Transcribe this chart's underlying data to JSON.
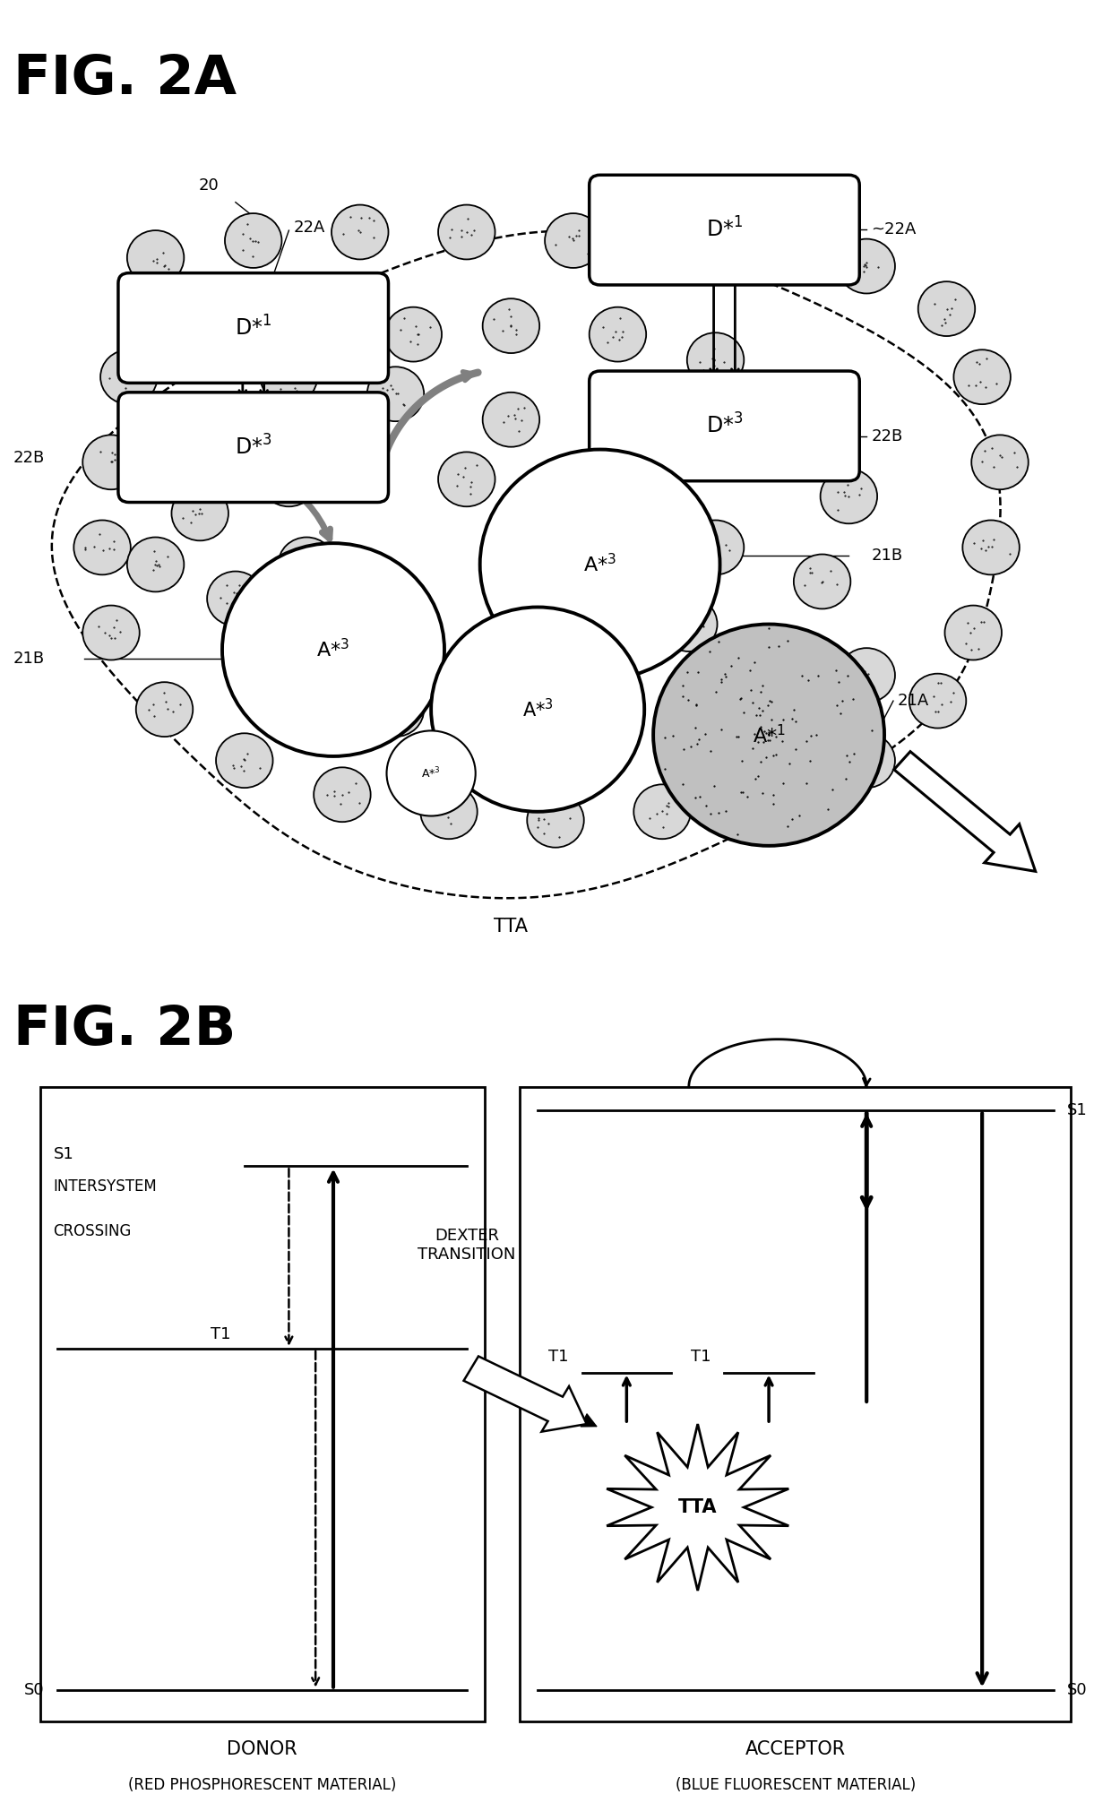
{
  "fig_title_2A": "FIG. 2A",
  "fig_title_2B": "FIG. 2B",
  "bg_color": "#ffffff",
  "dot_color": "#d0d0d0",
  "donor_label1": "DONOR",
  "donor_label2": "(RED PHOSPHORESCENT MATERIAL)",
  "acceptor_label1": "ACCEPTOR",
  "acceptor_label2": "(BLUE FLUORESCENT MATERIAL)",
  "s1_label": "S1",
  "s0_label": "S0",
  "t1_label": "T1",
  "tta_label": "TTA",
  "label_20": "20",
  "label_22A": "22A",
  "label_22B": "22B",
  "label_21A": "21A",
  "label_21B": "21B",
  "label_TTA": "TTA",
  "dexter": "DEXTER\nTRANSITION",
  "isc_s1": "S1",
  "isc_text1": "INTERSYSTEM",
  "isc_text2": "CROSSING"
}
